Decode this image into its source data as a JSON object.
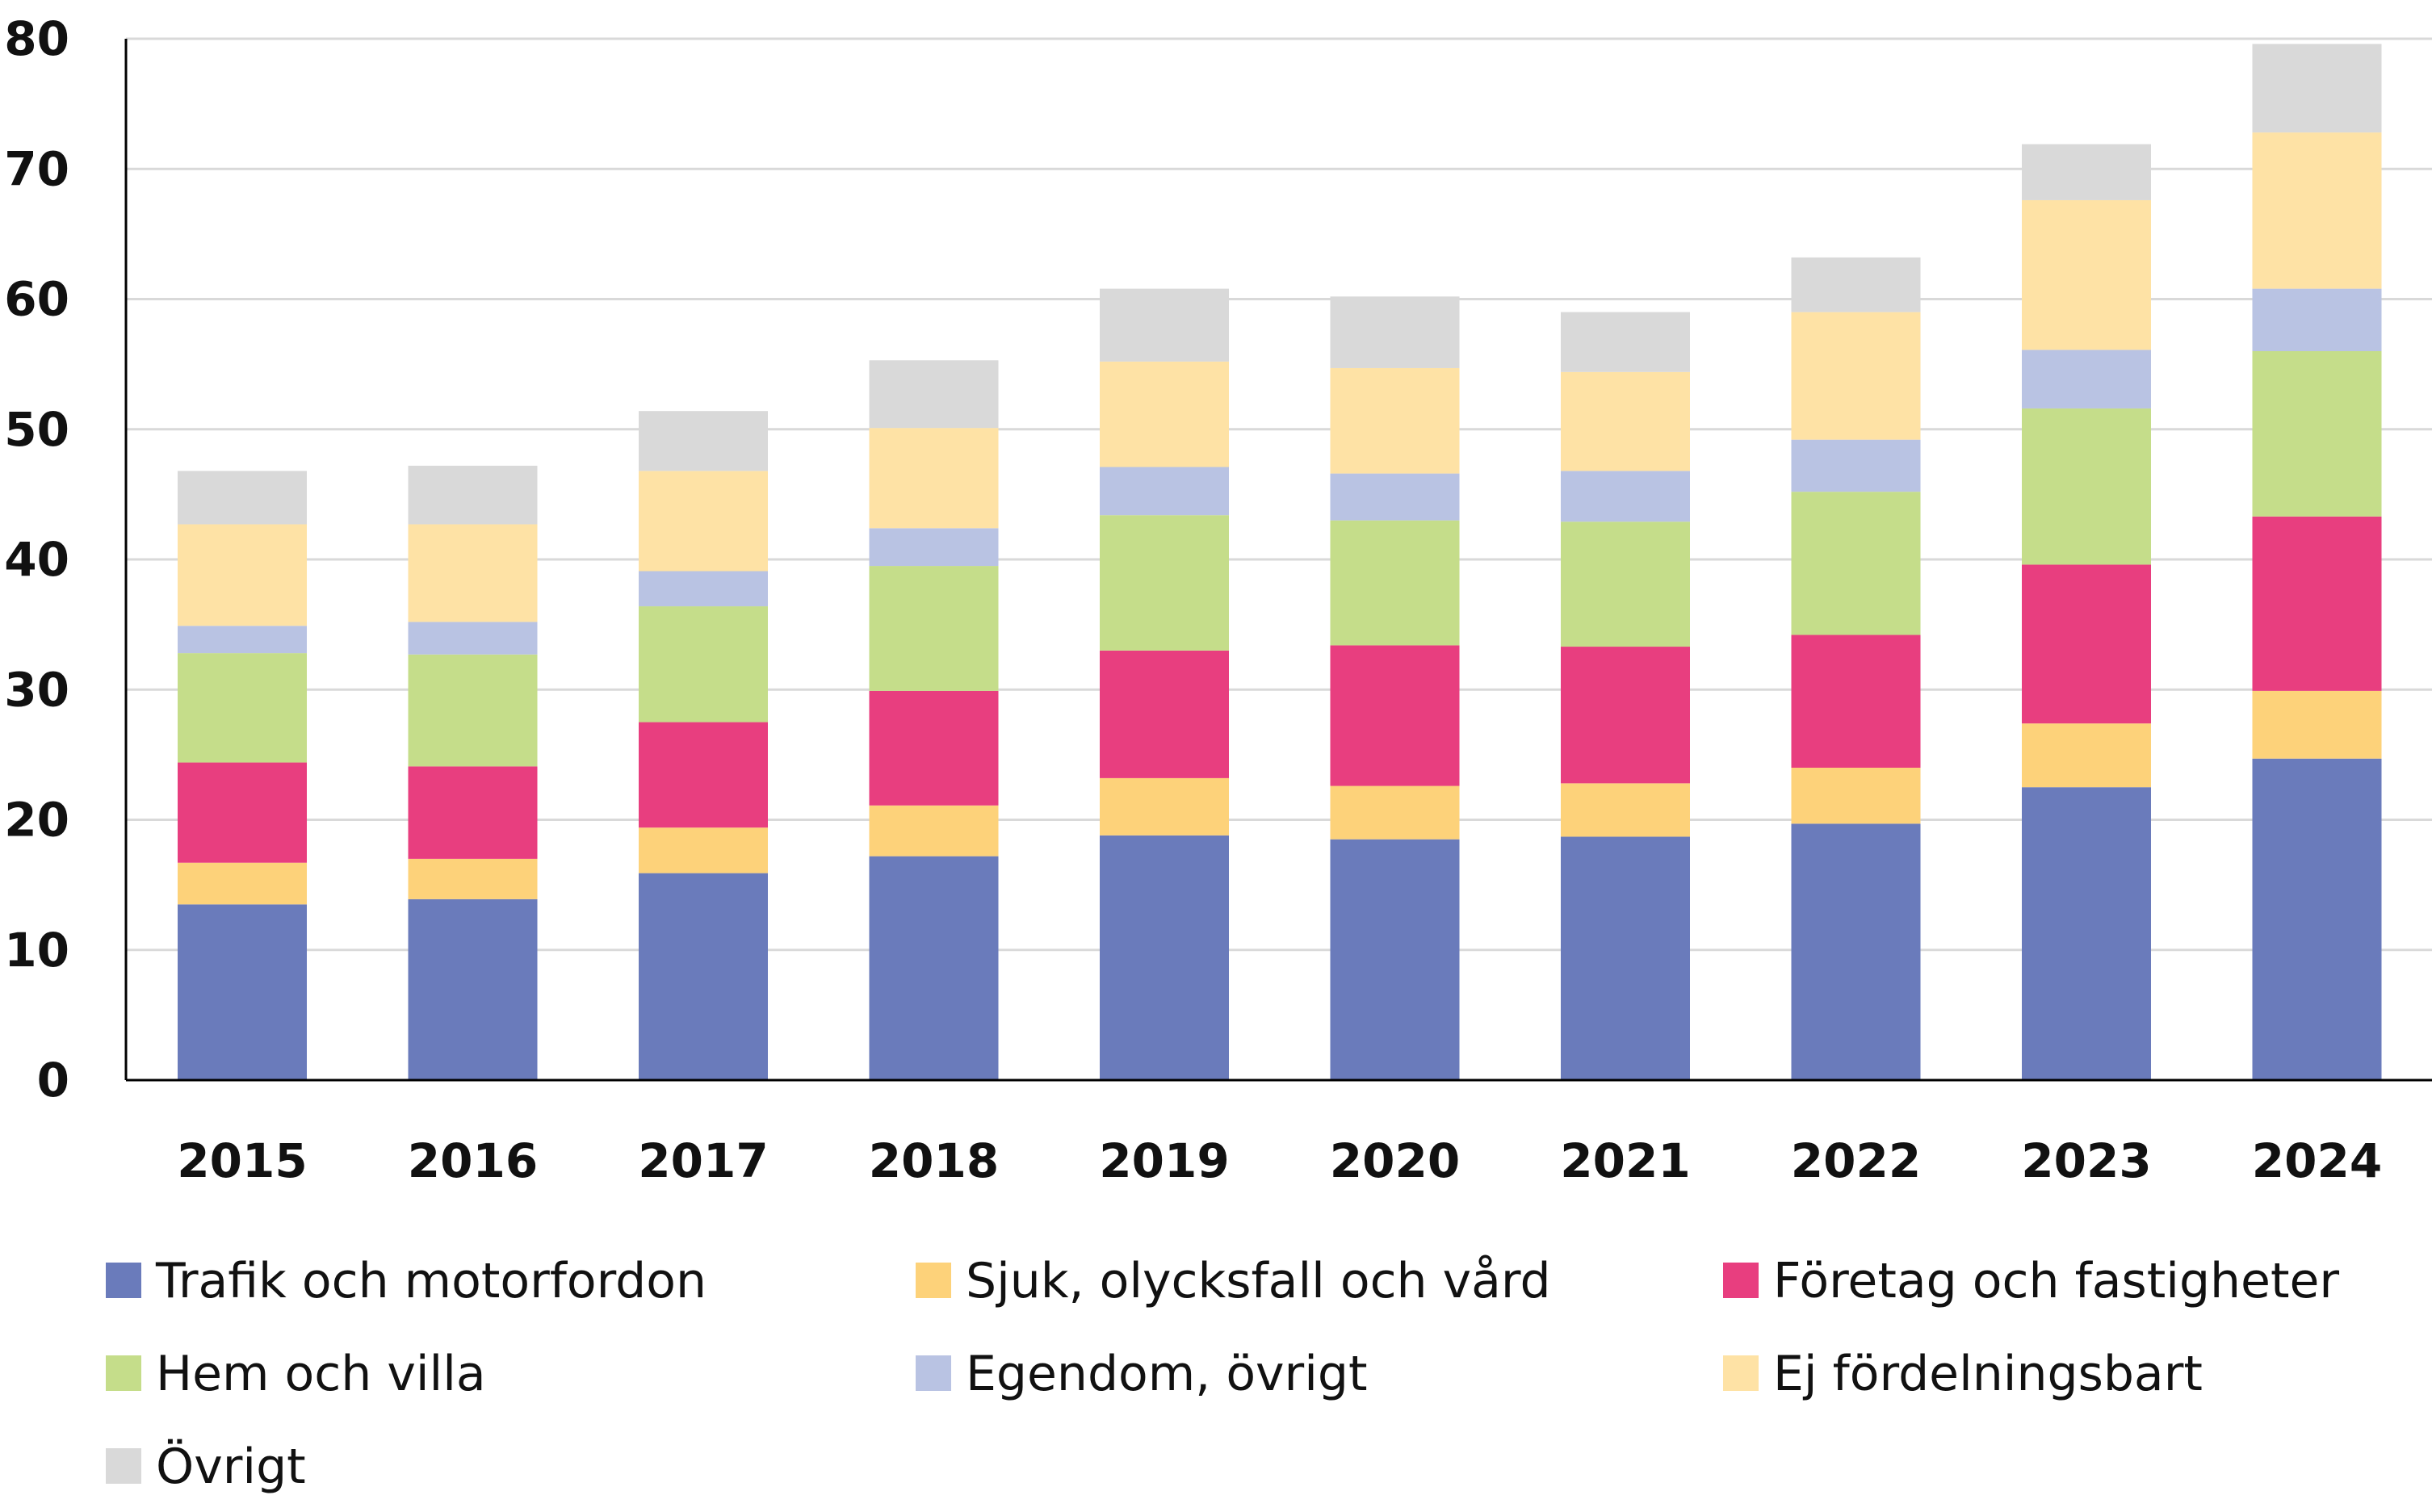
{
  "chart_data": {
    "type": "bar",
    "stacked": true,
    "title": "",
    "xlabel": "",
    "ylabel": "",
    "ylim": [
      0,
      80
    ],
    "yticks": [
      0,
      10,
      20,
      30,
      40,
      50,
      60,
      70,
      80
    ],
    "grid": true,
    "legend_position": "bottom",
    "categories": [
      "2015",
      "2016",
      "2017",
      "2018",
      "2019",
      "2020",
      "2021",
      "2022",
      "2023",
      "2024"
    ],
    "series": [
      {
        "name": "Trafik och motorfordon",
        "color": "#6A7BBB",
        "values": [
          13.5,
          13.9,
          15.9,
          17.2,
          18.8,
          18.5,
          18.7,
          19.7,
          22.5,
          24.7
        ]
      },
      {
        "name": "Sjuk, olycksfall och vård",
        "color": "#FDD27A",
        "values": [
          3.2,
          3.1,
          3.5,
          3.9,
          4.4,
          4.1,
          4.1,
          4.3,
          4.9,
          5.2
        ]
      },
      {
        "name": "Företag och fastigheter",
        "color": "#E83E7F",
        "values": [
          7.7,
          7.1,
          8.1,
          8.8,
          9.8,
          10.8,
          10.5,
          10.2,
          12.2,
          13.4
        ]
      },
      {
        "name": "Hem och villa",
        "color": "#C5DD8A",
        "values": [
          8.4,
          8.6,
          8.9,
          9.6,
          10.4,
          9.6,
          9.6,
          11.0,
          12.0,
          12.7
        ]
      },
      {
        "name": "Egendom, övrigt",
        "color": "#B9C3E3",
        "values": [
          2.1,
          2.5,
          2.7,
          2.9,
          3.7,
          3.6,
          3.9,
          4.0,
          4.5,
          4.8
        ]
      },
      {
        "name": "Ej fördelningsbart",
        "color": "#FEE2A5",
        "values": [
          7.8,
          7.5,
          7.7,
          7.7,
          8.1,
          8.1,
          7.6,
          9.8,
          11.5,
          12.0
        ]
      },
      {
        "name": "Övrigt",
        "color": "#D9D9D9",
        "values": [
          4.1,
          4.5,
          4.6,
          5.2,
          5.6,
          5.5,
          4.6,
          4.2,
          4.3,
          6.8
        ]
      }
    ]
  }
}
